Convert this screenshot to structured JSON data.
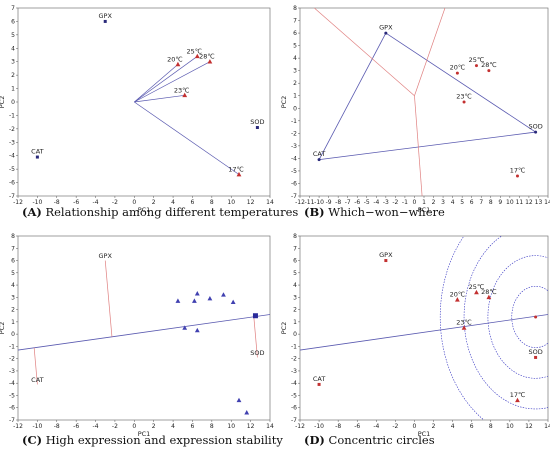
{
  "chart_data": [
    {
      "type": "scatter",
      "panel": "A",
      "caption_letter": "(A)",
      "caption_text": " Relationship among different temperatures",
      "xlabel": "PC1",
      "ylabel": "PC2",
      "xlim": [
        -12,
        14
      ],
      "ylim": [
        -7,
        7
      ],
      "xticks": [
        -12,
        -10,
        -8,
        -6,
        -4,
        -2,
        0,
        2,
        4,
        6,
        8,
        10,
        12,
        14
      ],
      "yticks": [
        -7,
        -6,
        -5,
        -4,
        -3,
        -2,
        -1,
        0,
        1,
        2,
        3,
        4,
        5,
        6,
        7
      ],
      "line_color": "#5a5ab0",
      "marker_color": "#c33030",
      "vectors_from_origin": [
        "20℃",
        "23℃",
        "25℃",
        "28℃",
        "17℃"
      ],
      "variables": [
        {
          "label": "GPX",
          "x": -3.0,
          "y": 6.0
        },
        {
          "label": "CAT",
          "x": -10.0,
          "y": -4.1
        },
        {
          "label": "SOD",
          "x": 12.7,
          "y": -1.9
        }
      ],
      "temperatures": [
        {
          "label": "20℃",
          "x": 4.5,
          "y": 2.8
        },
        {
          "label": "25℃",
          "x": 6.5,
          "y": 3.4
        },
        {
          "label": "28℃",
          "x": 7.8,
          "y": 3.0
        },
        {
          "label": "23℃",
          "x": 5.2,
          "y": 0.5
        },
        {
          "label": "17℃",
          "x": 10.8,
          "y": -5.4
        }
      ]
    },
    {
      "type": "scatter",
      "panel": "B",
      "caption_letter": "(B)",
      "caption_text": " Which−won−where",
      "xlabel": "PC1",
      "ylabel": "PC2",
      "xlim": [
        -12,
        14
      ],
      "ylim": [
        -7,
        8
      ],
      "xticks": [
        -12,
        -11,
        -10,
        -9,
        -8,
        -7,
        -6,
        -5,
        -4,
        -3,
        -2,
        -1,
        0,
        1,
        2,
        3,
        4,
        5,
        6,
        7,
        8,
        9,
        10,
        11,
        12,
        13,
        14
      ],
      "yticks": [
        -7,
        -6,
        -5,
        -4,
        -3,
        -2,
        -1,
        0,
        1,
        2,
        3,
        4,
        5,
        6,
        7,
        8
      ],
      "line_color": "#5a5ab0",
      "sector_line_color": "#e08080",
      "polygon": [
        "GPX",
        "SOD",
        "CAT"
      ],
      "sector_origin": {
        "x": 0.0,
        "y": 1.0
      },
      "sector_ends": [
        {
          "x": -10.5,
          "y": 8.0
        },
        {
          "x": 3.2,
          "y": 8.0
        },
        {
          "x": 0.8,
          "y": -7.0
        }
      ],
      "variables": [
        {
          "label": "GPX",
          "x": -3.0,
          "y": 6.0
        },
        {
          "label": "CAT",
          "x": -10.0,
          "y": -4.1
        },
        {
          "label": "SOD",
          "x": 12.7,
          "y": -1.9
        }
      ],
      "temperatures": [
        {
          "label": "20℃",
          "x": 4.5,
          "y": 2.8
        },
        {
          "label": "25℃",
          "x": 6.5,
          "y": 3.4
        },
        {
          "label": "28℃",
          "x": 7.8,
          "y": 3.0
        },
        {
          "label": "23℃",
          "x": 5.2,
          "y": 0.5
        },
        {
          "label": "17℃",
          "x": 10.8,
          "y": -5.4
        }
      ]
    },
    {
      "type": "scatter",
      "panel": "C",
      "caption_letter": "(C)",
      "caption_text": " High expression and expression stability",
      "xlabel": "PC1",
      "ylabel": "PC2",
      "xlim": [
        -12,
        14
      ],
      "ylim": [
        -7,
        8
      ],
      "xticks": [
        -12,
        -10,
        -8,
        -6,
        -4,
        -2,
        0,
        2,
        4,
        6,
        8,
        10,
        12,
        14
      ],
      "yticks": [
        -7,
        -6,
        -5,
        -4,
        -3,
        -2,
        -1,
        0,
        1,
        2,
        3,
        4,
        5,
        6,
        7,
        8
      ],
      "line_color": "#5a5ab0",
      "projection_color": "#e08080",
      "marker_color": "#4040b0",
      "axis_line": {
        "x1": -12,
        "y1": -1.3,
        "x2": 14,
        "y2": 1.6
      },
      "average_point": {
        "x": 12.5,
        "y": 1.5
      },
      "variables": [
        {
          "label": "GPX",
          "x": -3.0,
          "y": 6.0
        },
        {
          "label": "CAT",
          "x": -10.0,
          "y": -4.1
        },
        {
          "label": "SOD",
          "x": 12.7,
          "y": -1.9
        }
      ],
      "temperatures": [
        {
          "x": 4.5,
          "y": 2.7
        },
        {
          "x": 6.5,
          "y": 3.3
        },
        {
          "x": 7.8,
          "y": 2.9
        },
        {
          "x": 9.2,
          "y": 3.2
        },
        {
          "x": 6.2,
          "y": 2.7
        },
        {
          "x": 10.2,
          "y": 2.6
        },
        {
          "x": 5.2,
          "y": 0.5
        },
        {
          "x": 6.5,
          "y": 0.3
        },
        {
          "x": 10.8,
          "y": -5.4
        },
        {
          "x": 11.6,
          "y": -6.4
        }
      ]
    },
    {
      "type": "scatter",
      "panel": "D",
      "caption_letter": "(D)",
      "caption_text": " Concentric circles",
      "xlabel": "PC1",
      "ylabel": "PC2",
      "xlim": [
        -12,
        14
      ],
      "ylim": [
        -7,
        8
      ],
      "xticks": [
        -12,
        -10,
        -8,
        -6,
        -4,
        -2,
        0,
        2,
        4,
        6,
        8,
        10,
        12,
        14
      ],
      "yticks": [
        -7,
        -6,
        -5,
        -4,
        -3,
        -2,
        -1,
        0,
        1,
        2,
        3,
        4,
        5,
        6,
        7,
        8
      ],
      "line_color": "#5a5ab0",
      "circle_color": "#3030c0",
      "marker_color": "#c33030",
      "axis_line": {
        "x1": -12,
        "y1": -1.3,
        "x2": 14,
        "y2": 1.6
      },
      "center": {
        "x": 12.7,
        "y": 1.4
      },
      "radii": [
        2.5,
        5.0,
        7.5,
        10.0
      ],
      "variables": [
        {
          "label": "GPX",
          "x": -3.0,
          "y": 6.0
        },
        {
          "label": "CAT",
          "x": -10.0,
          "y": -4.1
        },
        {
          "label": "SOD",
          "x": 12.7,
          "y": -1.9
        }
      ],
      "temperatures": [
        {
          "label": "20℃",
          "x": 4.5,
          "y": 2.8
        },
        {
          "label": "25℃",
          "x": 6.5,
          "y": 3.4
        },
        {
          "label": "28℃",
          "x": 7.8,
          "y": 3.0
        },
        {
          "label": "23℃",
          "x": 5.2,
          "y": 0.5
        },
        {
          "label": "17℃",
          "x": 10.8,
          "y": -5.4
        }
      ]
    }
  ]
}
